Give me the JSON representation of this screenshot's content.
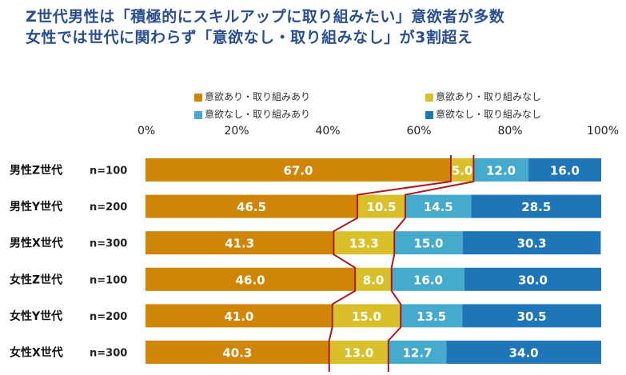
{
  "title": {
    "line1": "Z世代男性は「積極的にスキルアップに取り組みたい」意欲者が多数",
    "line2": "女性では世代に関わらず「意欲なし・取り組みなし」が3割超え"
  },
  "colors": {
    "title": "#2a4f8f",
    "series": [
      "#d08506",
      "#d9c02a",
      "#45aacb",
      "#1e75b8"
    ],
    "connector": "#b01818"
  },
  "chart_data": {
    "type": "bar",
    "orientation": "horizontal-stacked-100",
    "title": "Z世代男性は「積極的にスキルアップに取り組みたい」意欲者が多数 / 女性では世代に関わらず「意欲なし・取り組みなし」が3割超え",
    "xlabel": "",
    "ylabel": "",
    "xlim": [
      0,
      100
    ],
    "x_ticks": [
      "0%",
      "20%",
      "40%",
      "60%",
      "80%",
      "100%"
    ],
    "grid": false,
    "legend_position": "top",
    "categories": [
      "男性Z世代",
      "男性Y世代",
      "男性X世代",
      "女性Z世代",
      "女性Y世代",
      "女性X世代"
    ],
    "sample_sizes": [
      "n=100",
      "n=200",
      "n=300",
      "n=100",
      "n=200",
      "n=300"
    ],
    "series": [
      {
        "name": "意欲あり・取り組みあり",
        "values": [
          67.0,
          46.5,
          41.3,
          46.0,
          41.0,
          40.3
        ]
      },
      {
        "name": "意欲あり・取り組みなし",
        "values": [
          5.0,
          10.5,
          13.3,
          8.0,
          15.0,
          13.0
        ]
      },
      {
        "name": "意欲なし・取り組みあり",
        "values": [
          12.0,
          14.5,
          15.0,
          16.0,
          13.5,
          12.7
        ]
      },
      {
        "name": "意欲なし・取り組みなし",
        "values": [
          16.0,
          28.5,
          30.3,
          30.0,
          30.5,
          34.0
        ]
      }
    ],
    "labels": [
      [
        "67.0",
        "46.5",
        "41.3",
        "46.0",
        "41.0",
        "40.3"
      ],
      [
        "5.0",
        "10.5",
        "13.3",
        "8.0",
        "15.0",
        "13.0"
      ],
      [
        "12.0",
        "14.5",
        "15.0",
        "16.0",
        "13.5",
        "12.7"
      ],
      [
        "16.0",
        "28.5",
        "30.3",
        "30.0",
        "30.5",
        "34.0"
      ]
    ],
    "annotations": "Red connector lines trace boundaries of the 意欲あり・取り組みなし segment across rows"
  }
}
